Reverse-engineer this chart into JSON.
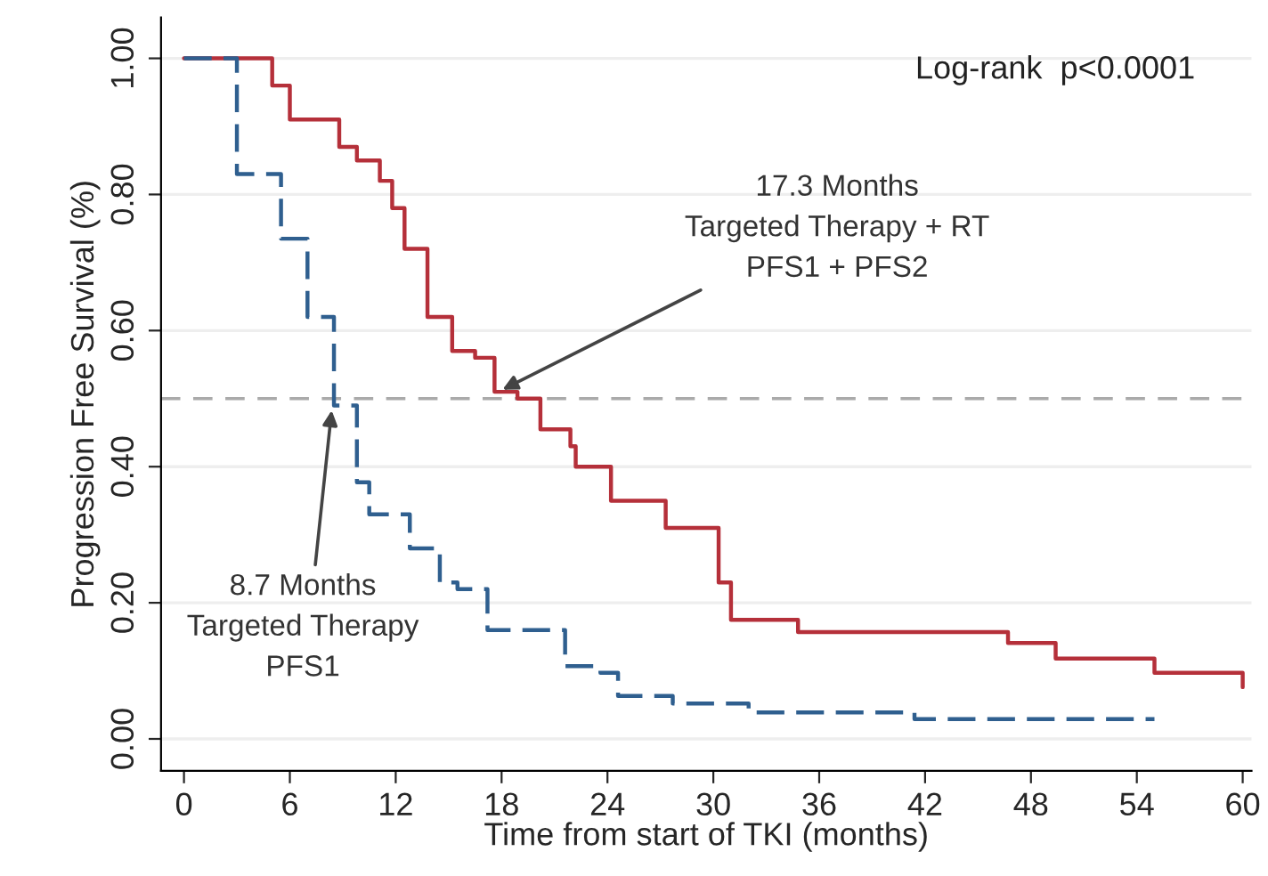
{
  "chart_data": {
    "type": "step",
    "xlabel": "Time from start of TKI (months)",
    "ylabel": "Progression Free Survival (%)",
    "series": [
      {
        "color": "#b5303a",
        "line_style": "solid",
        "x": [
          0,
          3,
          5,
          6,
          8.8,
          9.8,
          11.1,
          11.8,
          12.5,
          13.8,
          15.2,
          16.5,
          17.6,
          18.9,
          20.2,
          21.9,
          22.2,
          24.2,
          27.3,
          30.3,
          31,
          34.8,
          46.7,
          49.4,
          55,
          60
        ],
        "values": [
          1.0,
          1.0,
          0.96,
          0.91,
          0.87,
          0.85,
          0.82,
          0.78,
          0.72,
          0.62,
          0.57,
          0.56,
          0.51,
          0.5,
          0.455,
          0.43,
          0.4,
          0.35,
          0.31,
          0.23,
          0.175,
          0.157,
          0.141,
          0.118,
          0.097,
          0.076
        ]
      },
      {
        "color": "#2f5f8f",
        "line_style": "dashed",
        "x": [
          0,
          1,
          3,
          5.5,
          7,
          8.5,
          9.8,
          10.5,
          12.8,
          14.5,
          15.5,
          17.2,
          21.6,
          23.6,
          24.6,
          27.7,
          32,
          41.4,
          55
        ],
        "values": [
          1.0,
          1.0,
          0.83,
          0.735,
          0.62,
          0.49,
          0.377,
          0.33,
          0.28,
          0.23,
          0.22,
          0.16,
          0.107,
          0.097,
          0.063,
          0.052,
          0.039,
          0.029,
          0.029
        ]
      }
    ],
    "xlim": [
      -1.3,
      60.5
    ],
    "xticks": [
      0,
      6,
      12,
      18,
      24,
      30,
      36,
      42,
      48,
      54,
      60
    ],
    "ylim": [
      -0.047,
      1.06
    ],
    "yticks": [
      {
        "value": 0,
        "label": "0.00"
      },
      {
        "value": 0.2,
        "label": "0.20"
      },
      {
        "value": 0.4,
        "label": "0.40"
      },
      {
        "value": 0.6,
        "label": "0.60"
      },
      {
        "value": 0.8,
        "label": "0.80"
      },
      {
        "value": 1.0,
        "label": "1.00"
      }
    ],
    "grid": "y",
    "ref_lines": [
      {
        "axis": "y",
        "value": 0.5,
        "color": "#aaaaaa",
        "line_style": "dashed"
      }
    ],
    "annotations": [
      "Log-rank  p<0.0001",
      {
        "text": "17.3 Months\nTargeted Therapy + RT\nPFS1 + PFS2",
        "x": 17.8,
        "y": 0.51
      },
      {
        "text": "8.7 Months\nTargeted Therapy\nPFS1",
        "x": 8.4,
        "y": 0.49
      }
    ]
  }
}
